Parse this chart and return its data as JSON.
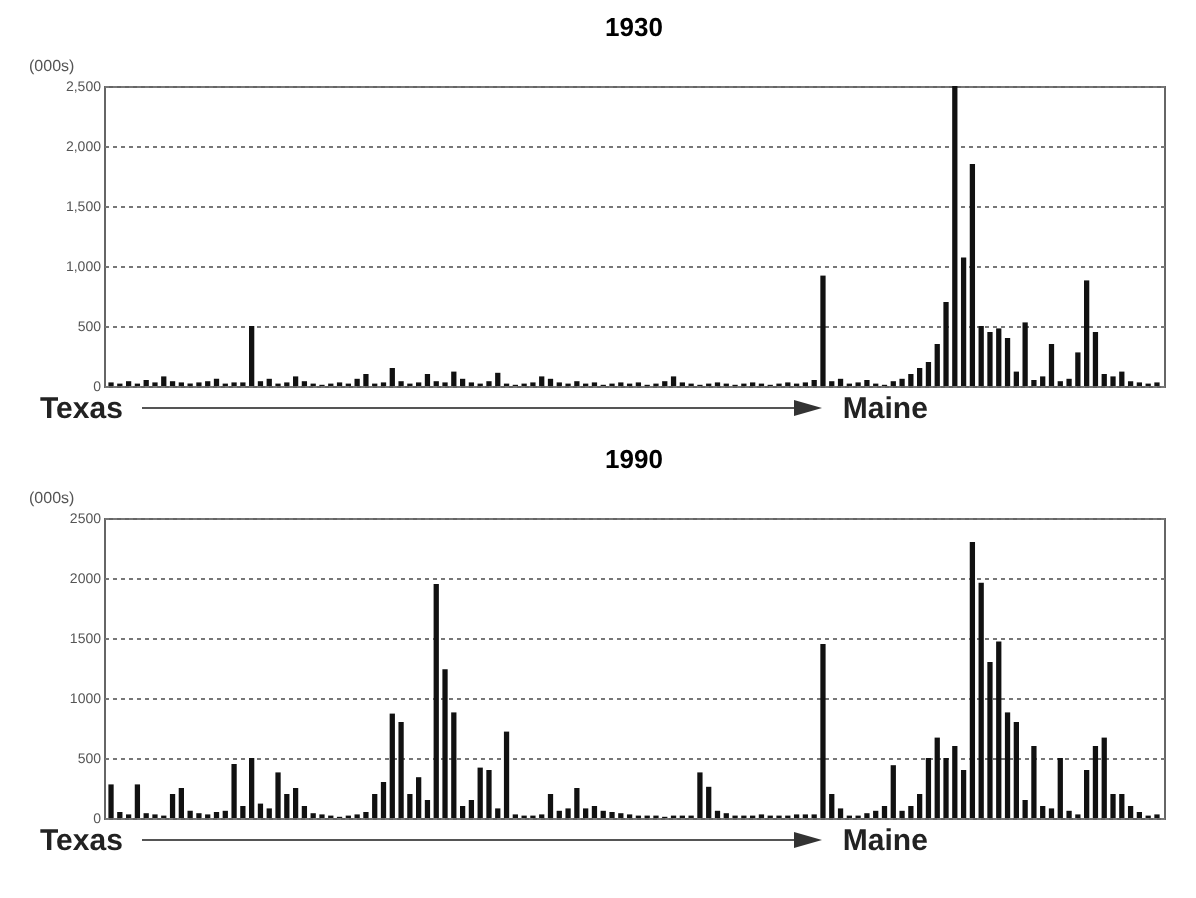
{
  "chart_data": [
    {
      "type": "bar",
      "title": "1930",
      "ylabel": "(000s)",
      "color": "#111111",
      "grid": "y",
      "tick_labels": "y",
      "ylim": [
        0,
        2500
      ],
      "yticks": [
        0,
        500,
        {
          "value": 1000,
          "label": "1,000"
        },
        {
          "value": 1500,
          "label": "1,500"
        },
        {
          "value": 2000,
          "label": "2,000"
        },
        {
          "value": 2500,
          "label": "2,500"
        }
      ],
      "annotations": [
        "Texas",
        "Maine"
      ],
      "categories": [
        null,
        null,
        null,
        null,
        null,
        null,
        null,
        null,
        null,
        null,
        null,
        null,
        null,
        null,
        null,
        null,
        null,
        null,
        null,
        null,
        null,
        null,
        null,
        null,
        null,
        null,
        null,
        null,
        null,
        null,
        null,
        null,
        null,
        null,
        null,
        null,
        null,
        null,
        null,
        null,
        null,
        null,
        null,
        null,
        null,
        null,
        null,
        null,
        null,
        null,
        null,
        null,
        null,
        null,
        null,
        null,
        null,
        null,
        null,
        null,
        null,
        null,
        null,
        null,
        null,
        null,
        null,
        null,
        null,
        null,
        null,
        null,
        null,
        null,
        null,
        null,
        null,
        null,
        null,
        null,
        null,
        null,
        null,
        null,
        null,
        null,
        null,
        null,
        null,
        null,
        null,
        null,
        null,
        null,
        null,
        null,
        null,
        null,
        null,
        null,
        null,
        null,
        null,
        null,
        null,
        null,
        null,
        null,
        null,
        null,
        null,
        null,
        null,
        null,
        null,
        null,
        null,
        null,
        null,
        null
      ],
      "values": [
        30,
        20,
        40,
        20,
        50,
        30,
        80,
        40,
        30,
        20,
        30,
        40,
        60,
        20,
        30,
        30,
        500,
        40,
        60,
        20,
        30,
        80,
        40,
        20,
        10,
        20,
        30,
        20,
        60,
        100,
        20,
        30,
        150,
        40,
        20,
        30,
        100,
        40,
        30,
        120,
        60,
        30,
        20,
        40,
        110,
        20,
        10,
        20,
        30,
        80,
        60,
        30,
        20,
        40,
        20,
        30,
        10,
        20,
        30,
        20,
        30,
        10,
        20,
        40,
        80,
        30,
        20,
        10,
        20,
        30,
        20,
        10,
        20,
        30,
        20,
        10,
        20,
        30,
        20,
        30,
        50,
        920,
        40,
        60,
        20,
        30,
        50,
        20,
        10,
        40,
        60,
        100,
        150,
        200,
        350,
        700,
        2500,
        1070,
        1850,
        500,
        450,
        480,
        400,
        120,
        530,
        50,
        80,
        350,
        40,
        60,
        280,
        880,
        450,
        100,
        80,
        120,
        40,
        30,
        20,
        30
      ]
    },
    {
      "type": "bar",
      "title": "1990",
      "ylabel": "(000s)",
      "color": "#111111",
      "grid": "y",
      "tick_labels": "y",
      "ylim": [
        0,
        2500
      ],
      "yticks": [
        0,
        500,
        1000,
        1500,
        2000,
        2500
      ],
      "annotations": [
        "Texas",
        "Maine"
      ],
      "categories": [
        null,
        null,
        null,
        null,
        null,
        null,
        null,
        null,
        null,
        null,
        null,
        null,
        null,
        null,
        null,
        null,
        null,
        null,
        null,
        null,
        null,
        null,
        null,
        null,
        null,
        null,
        null,
        null,
        null,
        null,
        null,
        null,
        null,
        null,
        null,
        null,
        null,
        null,
        null,
        null,
        null,
        null,
        null,
        null,
        null,
        null,
        null,
        null,
        null,
        null,
        null,
        null,
        null,
        null,
        null,
        null,
        null,
        null,
        null,
        null,
        null,
        null,
        null,
        null,
        null,
        null,
        null,
        null,
        null,
        null,
        null,
        null,
        null,
        null,
        null,
        null,
        null,
        null,
        null,
        null,
        null,
        null,
        null,
        null,
        null,
        null,
        null,
        null,
        null,
        null,
        null,
        null,
        null,
        null,
        null,
        null,
        null,
        null,
        null,
        null,
        null,
        null,
        null,
        null,
        null,
        null,
        null,
        null,
        null,
        null,
        null,
        null,
        null,
        null,
        null,
        null,
        null,
        null,
        null,
        null
      ],
      "values": [
        280,
        50,
        30,
        280,
        40,
        30,
        20,
        200,
        250,
        60,
        40,
        30,
        50,
        60,
        450,
        100,
        500,
        120,
        80,
        380,
        200,
        250,
        100,
        40,
        30,
        20,
        10,
        20,
        30,
        50,
        200,
        300,
        870,
        800,
        200,
        340,
        150,
        1950,
        1240,
        880,
        100,
        150,
        420,
        400,
        80,
        720,
        30,
        20,
        20,
        30,
        200,
        60,
        80,
        250,
        80,
        100,
        60,
        50,
        40,
        30,
        20,
        20,
        20,
        10,
        20,
        20,
        20,
        380,
        260,
        60,
        40,
        20,
        20,
        20,
        30,
        20,
        20,
        20,
        30,
        30,
        30,
        1450,
        200,
        80,
        20,
        20,
        40,
        60,
        100,
        440,
        60,
        100,
        200,
        500,
        670,
        500,
        600,
        400,
        2300,
        1960,
        1300,
        1470,
        880,
        800,
        150,
        600,
        100,
        80,
        500,
        60,
        30,
        400,
        600,
        670,
        200,
        200,
        100,
        50,
        20,
        30
      ]
    }
  ]
}
